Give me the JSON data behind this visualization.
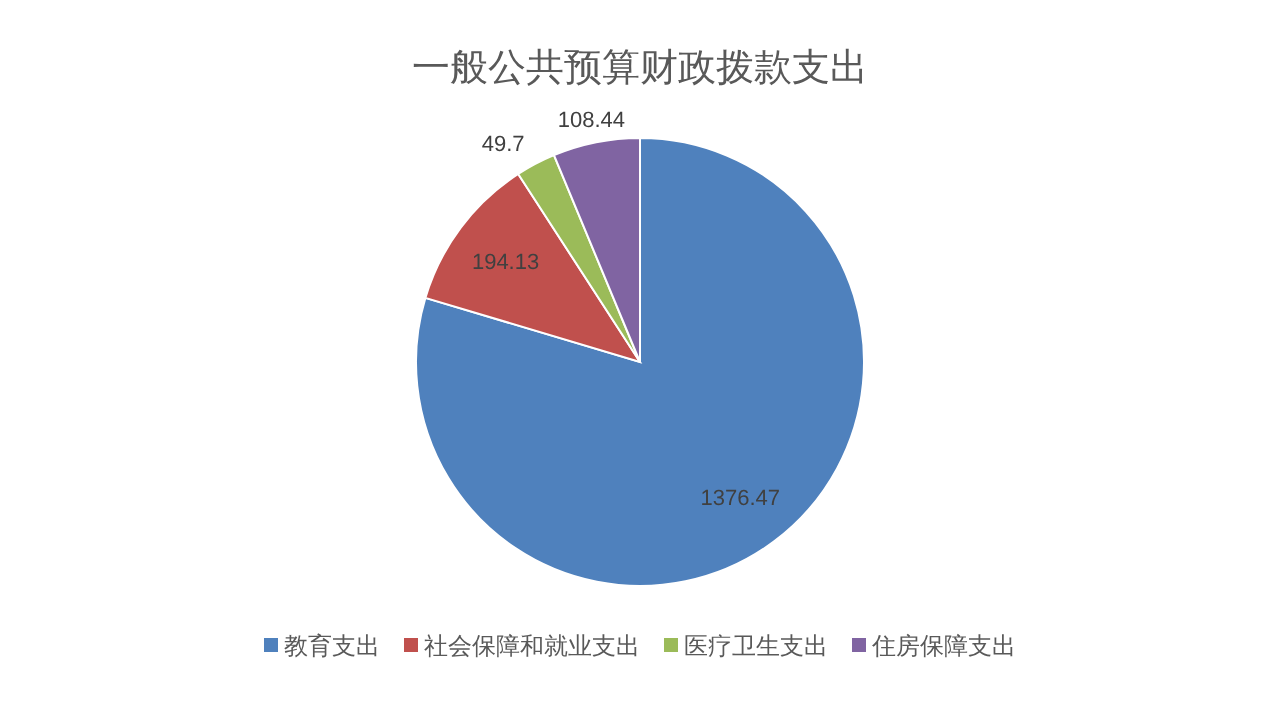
{
  "chart_data": {
    "type": "pie",
    "title": "一般公共预算财政拨款支出",
    "categories": [
      "教育支出",
      "社会保障和就业支出",
      "医疗卫生支出",
      "住房保障支出"
    ],
    "values": [
      1376.47,
      194.13,
      49.7,
      108.44
    ],
    "colors": [
      "#4f81bd",
      "#c0504d",
      "#9bbb59",
      "#8064a2"
    ],
    "data_labels": true,
    "legend": "bottom"
  }
}
